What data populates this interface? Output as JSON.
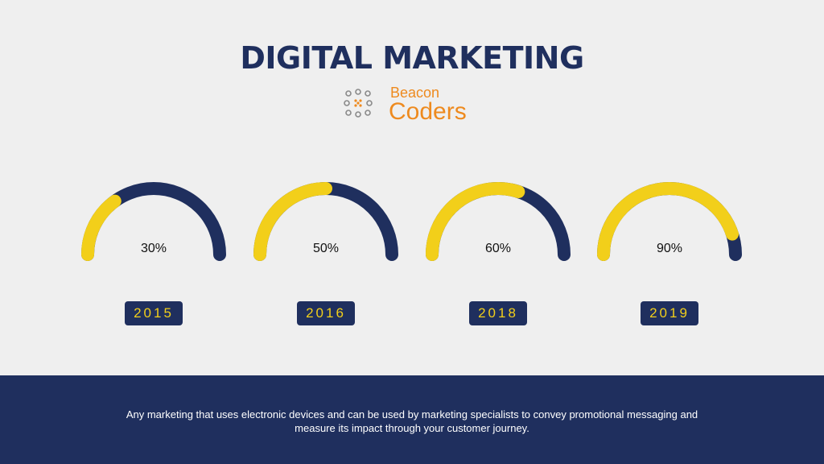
{
  "header": {
    "title": "DIGITAL MARKETING",
    "logo_line1": "Beacon",
    "logo_line2": "Coders"
  },
  "colors": {
    "filled": "#f2cf1a",
    "track": "#1f2f5e",
    "brand_orange": "#ee8a1e"
  },
  "chart_data": {
    "type": "gauge",
    "categories": [
      "2015",
      "2016",
      "2018",
      "2019"
    ],
    "values": [
      30,
      50,
      60,
      90
    ],
    "value_labels": [
      "30%",
      "50%",
      "60%",
      "90%"
    ],
    "range": [
      0,
      100
    ]
  },
  "footer": {
    "text": "Any marketing that uses electronic  devices and can be used by marketing specialists to convey promotional messaging and measure its impact through your customer journey."
  }
}
